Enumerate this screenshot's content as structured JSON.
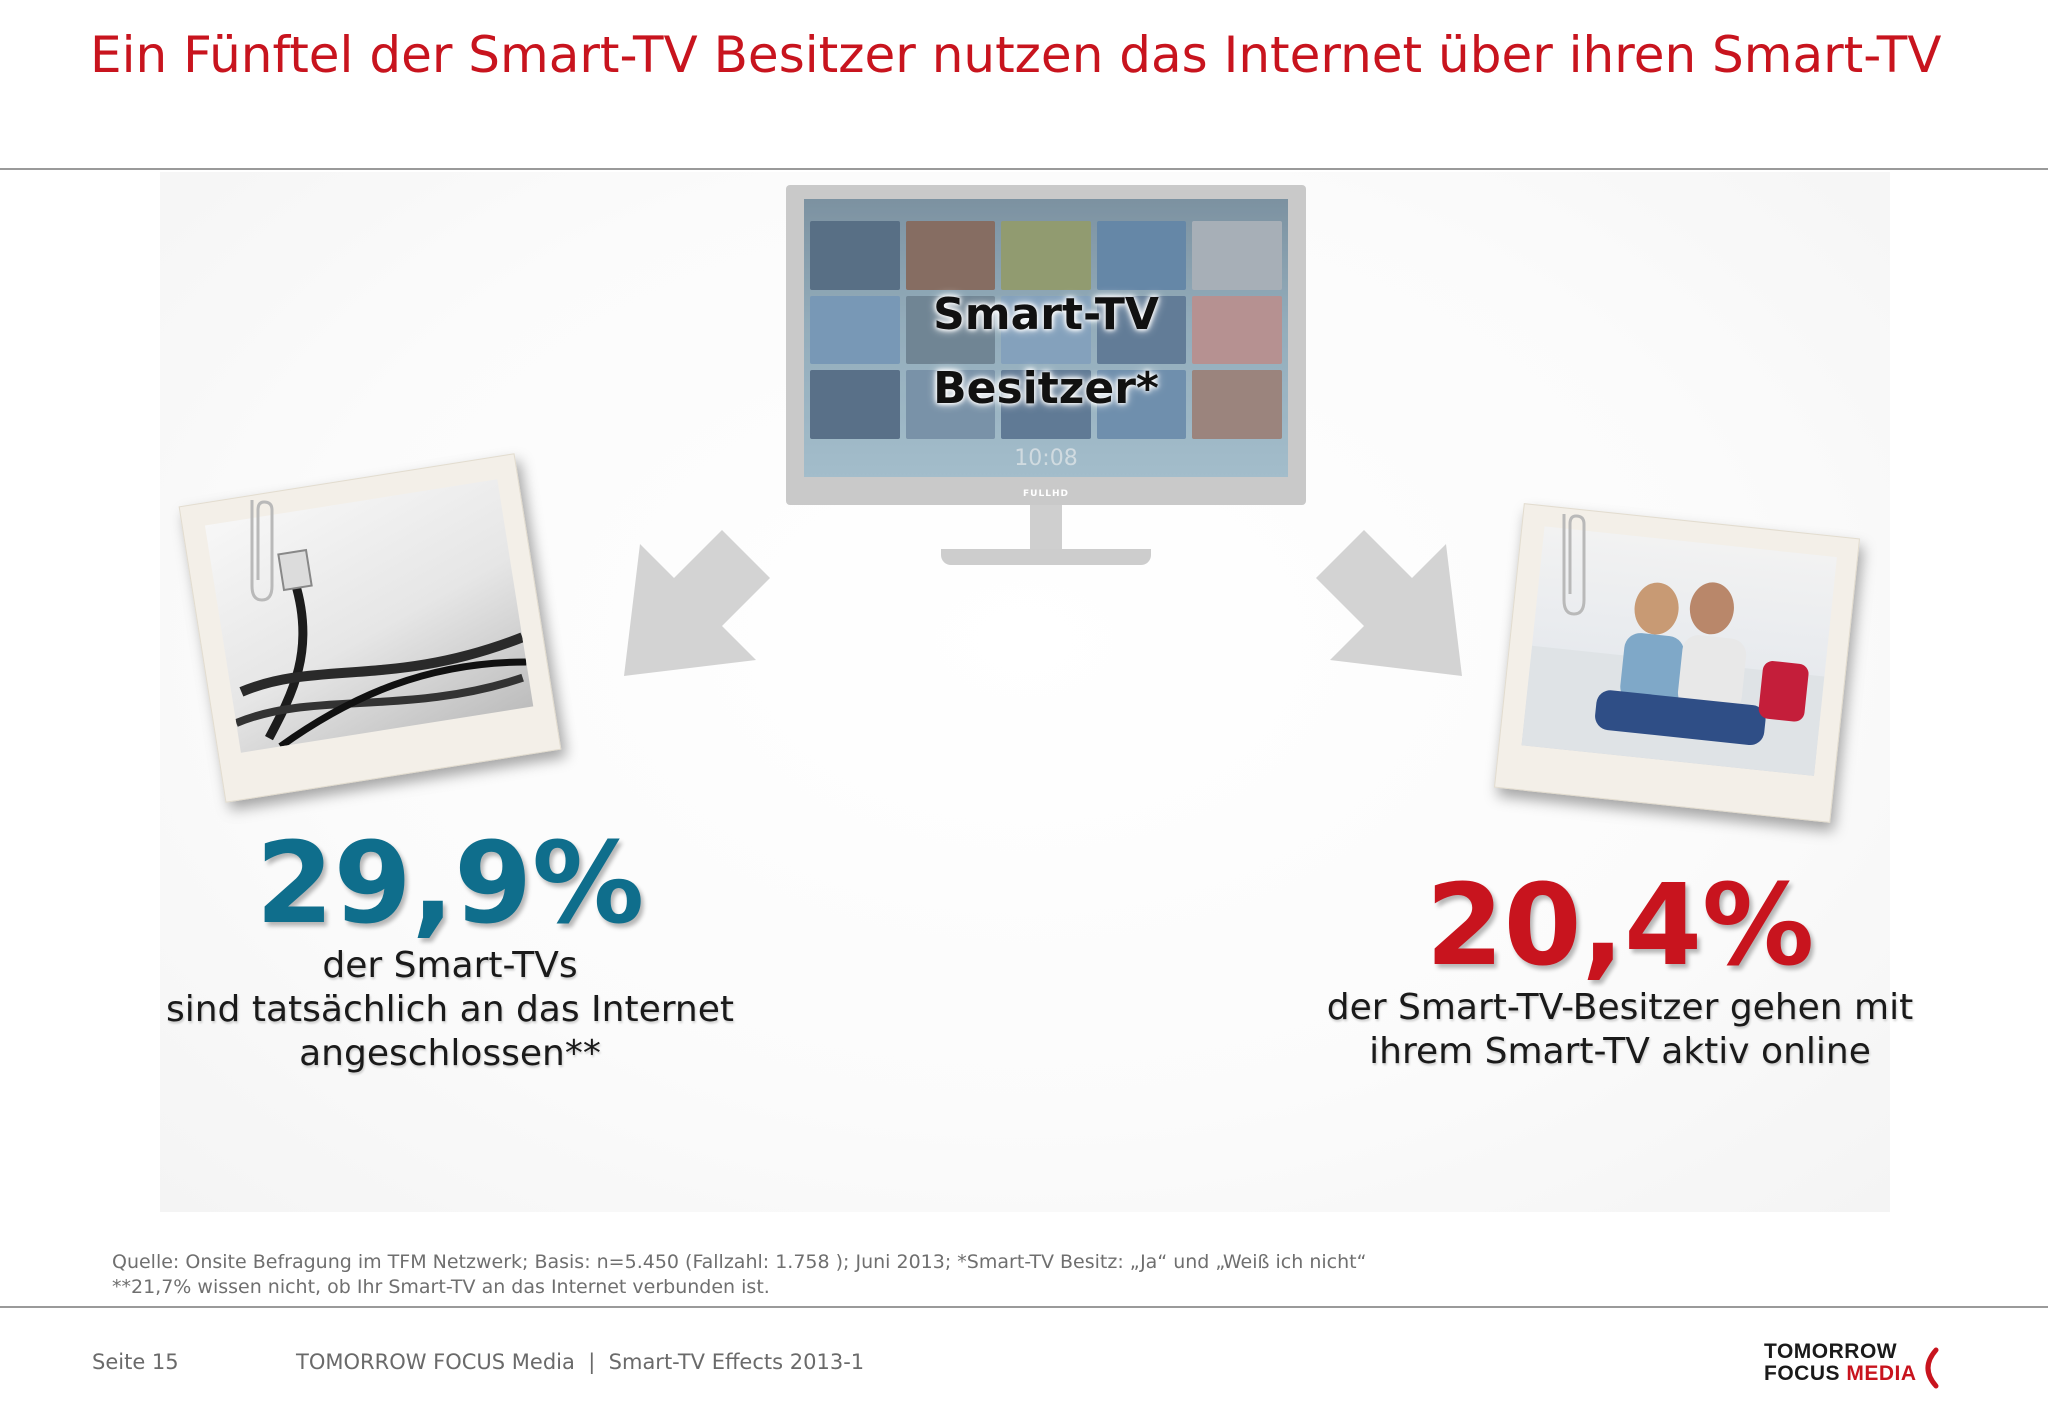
{
  "slide": {
    "title": "Ein Fünftel der Smart-TV Besitzer nutzen das Internet über ihren Smart-TV"
  },
  "tv": {
    "label_line1": "Smart-TV",
    "label_line2": "Besitzer*",
    "screen_clock": "10:08",
    "brand": "FULLHD"
  },
  "left_stat": {
    "value": "29,9%",
    "desc_line1": "der Smart-TVs",
    "desc_line2": "sind tatsächlich an das Internet",
    "desc_line3": "angeschlossen**",
    "color": "#0f6e8c"
  },
  "right_stat": {
    "value": "20,4%",
    "desc_line1": "der Smart-TV-Besitzer gehen mit",
    "desc_line2": "ihrem Smart-TV aktiv online",
    "color": "#c8141e"
  },
  "source": {
    "line1": "Quelle: Onsite Befragung im TFM Netzwerk; Basis: n=5.450 (Fallzahl: 1.758 ); Juni 2013; *Smart-TV Besitz: „Ja“ und „Weiß ich nicht“",
    "line2": "**21,7% wissen nicht, ob Ihr Smart-TV an das Internet verbunden ist."
  },
  "footer": {
    "page": "Seite 15",
    "center": "TOMORROW FOCUS Media  |  Smart-TV Effects 2013-1",
    "logo_line1": "TOMORROW",
    "logo_line2_a": "FOCUS ",
    "logo_line2_b": "MEDIA"
  },
  "colors": {
    "brand_red": "#c8141e",
    "teal": "#0f6e8c",
    "arrow_gray": "#d3d3d3"
  },
  "icons": {
    "left_arrow": "arrow-down-left-icon",
    "right_arrow": "arrow-down-right-icon",
    "paperclip": "paperclip-icon",
    "logo_mark": "bracket-mark-icon"
  }
}
